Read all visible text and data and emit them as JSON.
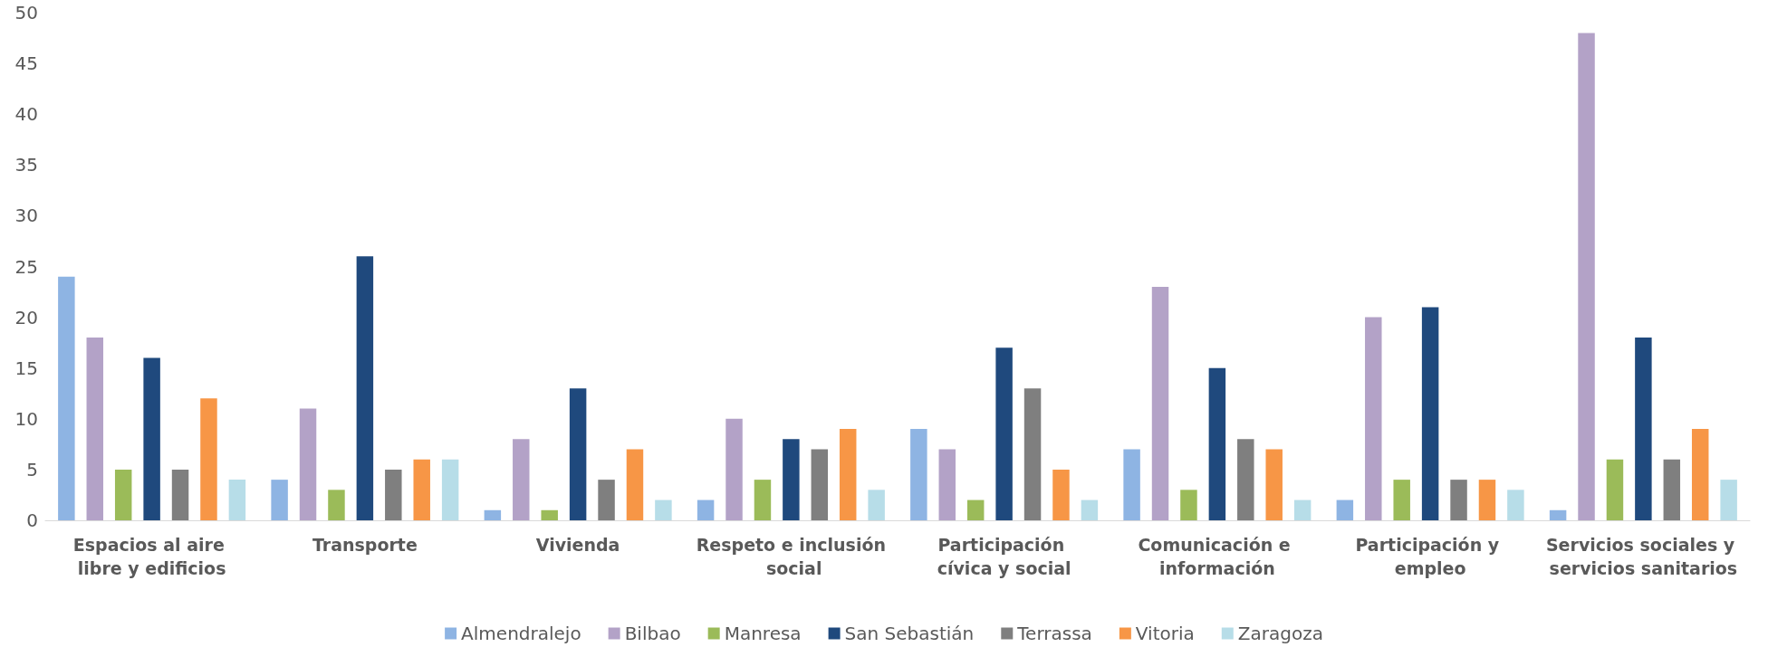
{
  "chart_data": {
    "type": "bar",
    "categories": [
      "Espacios al aire libre y edificios",
      "Transporte",
      "Vivienda",
      "Respeto e inclusión social",
      "Participación cívica y social",
      "Comunicación e información",
      "Participación y empleo",
      "Servicios sociales y servicios sanitarios"
    ],
    "series": [
      {
        "name": "Almendralejo",
        "color": "#8eb4e3",
        "values": [
          24,
          4,
          1,
          2,
          9,
          7,
          2,
          1
        ]
      },
      {
        "name": "Bilbao",
        "color": "#b3a2c7",
        "values": [
          18,
          11,
          8,
          10,
          7,
          23,
          20,
          48
        ]
      },
      {
        "name": "Manresa",
        "color": "#9bbb59",
        "values": [
          5,
          3,
          1,
          4,
          2,
          3,
          4,
          6
        ]
      },
      {
        "name": "San Sebastián",
        "color": "#1f497d",
        "values": [
          16,
          26,
          13,
          8,
          17,
          15,
          21,
          18
        ]
      },
      {
        "name": "Terrassa",
        "color": "#7f7f7f",
        "values": [
          5,
          5,
          4,
          7,
          13,
          8,
          4,
          6
        ]
      },
      {
        "name": "Vitoria",
        "color": "#f79646",
        "values": [
          12,
          6,
          7,
          9,
          5,
          7,
          4,
          9
        ]
      },
      {
        "name": "Zaragoza",
        "color": "#b7dde8",
        "values": [
          4,
          6,
          2,
          3,
          2,
          2,
          3,
          4
        ]
      }
    ],
    "ylim": [
      0,
      50
    ],
    "yticks": [
      0,
      5,
      10,
      15,
      20,
      25,
      30,
      35,
      40,
      45,
      50
    ],
    "grid": false,
    "legend": "bottom"
  }
}
